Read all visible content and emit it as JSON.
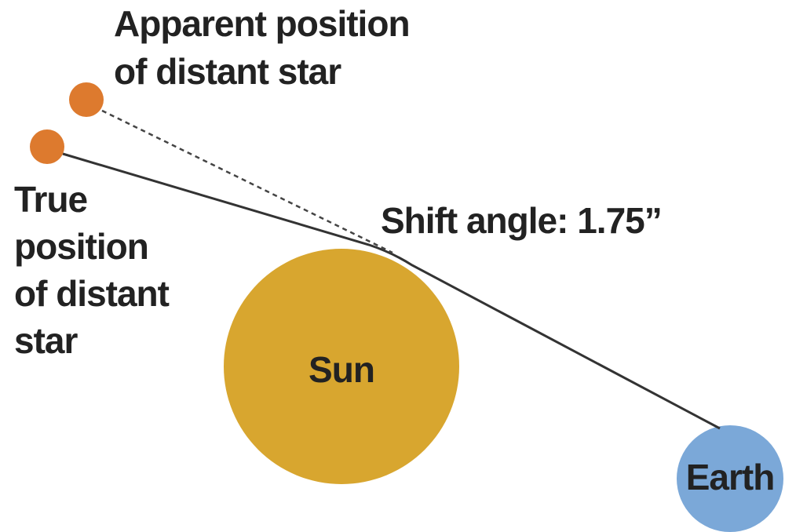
{
  "apparent_label": [
    "Apparent position",
    "of distant star"
  ],
  "true_label": [
    "True",
    "position",
    "of distant",
    "star"
  ],
  "shift_label": "Shift angle: 1.75”",
  "sun_label": "Sun",
  "earth_label": "Earth"
}
